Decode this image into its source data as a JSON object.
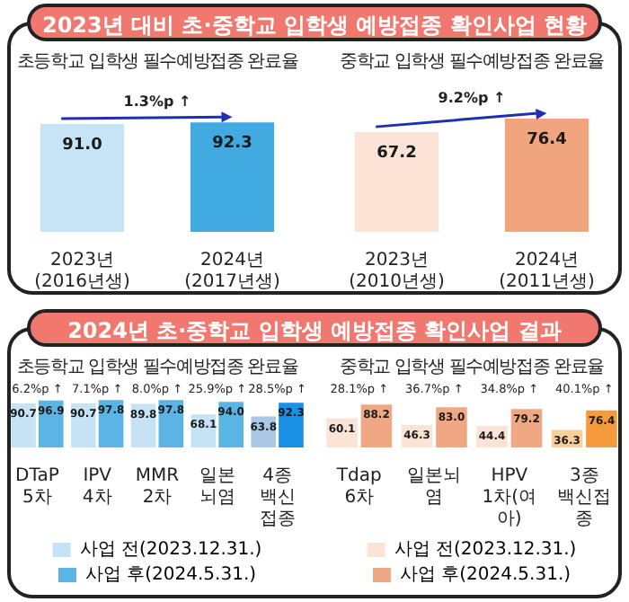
{
  "chart_data": [
    {
      "type": "bar",
      "title": "2023년 대비 초·중학교 입학생 예방접종 확인사업 현황",
      "subtitle": "초등학교 입학생 필수예방접종 완료율",
      "categories": [
        "2023년\n(2016년생)",
        "2024년\n(2017년생)"
      ],
      "series": [
        {
          "colors": [
            "#c6e4f5",
            "#41aae0"
          ],
          "values": [
            91.0,
            92.3
          ],
          "value_labels": [
            "91.0",
            "92.3"
          ]
        }
      ],
      "tick_labels": "x",
      "annotations": [
        "1.3%p ↑"
      ]
    },
    {
      "type": "bar",
      "subtitle": "중학교 입학생 필수예방접종 완료율",
      "categories": [
        "2023년\n(2010년생)",
        "2024년\n(2011년생)"
      ],
      "series": [
        {
          "colors": [
            "#fce3d6",
            "#f0a57f"
          ],
          "values": [
            67.2,
            76.4
          ],
          "value_labels": [
            "67.2",
            "76.4"
          ]
        }
      ],
      "tick_labels": "x",
      "annotations": [
        "9.2%p ↑"
      ]
    },
    {
      "type": "bar",
      "title": "2024년 초·중학교 입학생 예방접종 확인사업 결과",
      "subtitle": "초등학교 입학생 필수예방접종 완료율",
      "categories": [
        "DTaP 5차",
        "IPV 4차",
        "MMR 2차",
        "일본뇌염",
        "4종 백신접종"
      ],
      "series": [
        {
          "name": "사업 전(2023.12.31.)",
          "color": "#c5e3f4",
          "colors": [
            "#c5e3f4",
            "#c5e3f4",
            "#c5e3f4",
            "#c5e3f4",
            "#a8c8e6"
          ],
          "values": [
            90.7,
            90.7,
            89.8,
            68.1,
            63.8
          ],
          "value_labels": [
            "90.7",
            "90.7",
            "89.8",
            "68.1",
            "63.8"
          ]
        },
        {
          "name": "사업 후(2024.5.31.)",
          "color": "#5ab4e4",
          "colors": [
            "#5ab4e4",
            "#5ab4e4",
            "#5ab4e4",
            "#5ab4e4",
            "#1a8fe6"
          ],
          "values": [
            96.9,
            97.8,
            97.8,
            94.0,
            92.3
          ],
          "value_labels": [
            "96.9",
            "97.8",
            "97.8",
            "94.0",
            "92.3"
          ]
        }
      ],
      "tick_labels": "x",
      "legend": "bottom",
      "annotations": [
        "6.2%p ↑",
        "7.1%p ↑",
        "8.0%p ↑",
        "25.9%p ↑",
        "28.5%p ↑"
      ]
    },
    {
      "type": "bar",
      "subtitle": "중학교 입학생 필수예방접종 완료율",
      "categories": [
        "Tdap 6차",
        "일본뇌염",
        "HPV 1차(여아)",
        "3종 백신접종"
      ],
      "series": [
        {
          "name": "사업 전(2023.12.31.)",
          "color": "#fbe3d5",
          "colors": [
            "#fbe3d5",
            "#fbe3d5",
            "#fbe3d5",
            "#fbcf9a"
          ],
          "values": [
            60.1,
            46.3,
            44.4,
            36.3
          ],
          "value_labels": [
            "60.1",
            "46.3",
            "44.4",
            "36.3"
          ]
        },
        {
          "name": "사업 후(2024.5.31.)",
          "color": "#f0a884",
          "colors": [
            "#f0a884",
            "#f0a884",
            "#f0a884",
            "#f59b3c"
          ],
          "values": [
            88.2,
            83.0,
            79.2,
            76.4
          ],
          "value_labels": [
            "88.2",
            "83.0",
            "79.2",
            "76.4"
          ]
        }
      ],
      "tick_labels": "x",
      "legend": "bottom",
      "annotations": [
        "28.1%p ↑",
        "36.7%p ↑",
        "34.8%p ↑",
        "40.1%p ↑"
      ]
    }
  ]
}
